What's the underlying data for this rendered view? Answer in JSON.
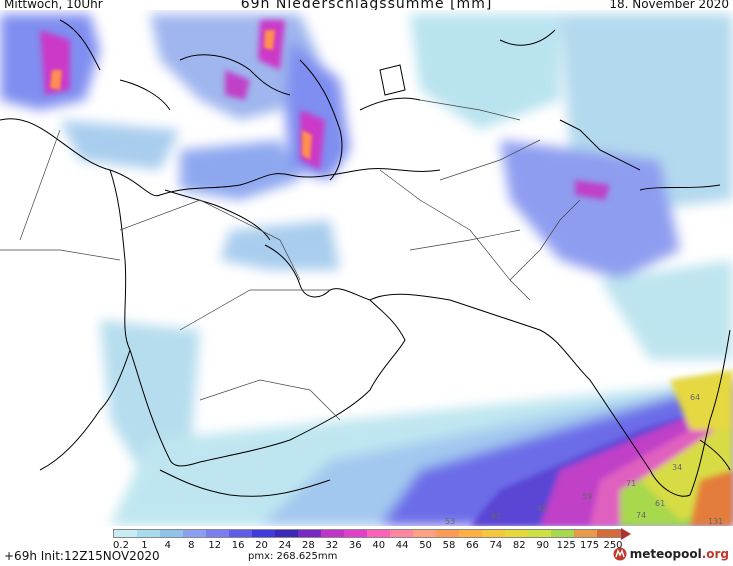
{
  "header": {
    "weekday_time": "Mittwoch, 10Uhr",
    "title": "69h Niederschlagssumme [mm]",
    "date": "18. November 2020"
  },
  "legend": {
    "labels": [
      "0.2",
      "1",
      "4",
      "8",
      "12",
      "16",
      "20",
      "24",
      "28",
      "32",
      "36",
      "40",
      "44",
      "50",
      "58",
      "66",
      "74",
      "82",
      "90",
      "125",
      "175",
      "250"
    ],
    "colors": [
      "#c8ecf3",
      "#a7dcec",
      "#8ec3ea",
      "#8a9ff0",
      "#7a7ef0",
      "#5f5ce8",
      "#3f3cdc",
      "#3b2ab8",
      "#7a2ac4",
      "#c035c8",
      "#e040c8",
      "#ff60b8",
      "#ff85a0",
      "#ffa080",
      "#ff9a55",
      "#ffb040",
      "#f5c83c",
      "#e7d83a",
      "#cde03f",
      "#a8d84c",
      "#e89a4a",
      "#d86a3a"
    ]
  },
  "footer": {
    "init": "+69h Init:12Z15NOV2020",
    "pmx": "pmx: 268.625mm",
    "brand_main": "meteopool",
    "brand_suffix": ".org"
  },
  "map": {
    "values": [
      "64",
      "34",
      "71",
      "59",
      "42",
      "62",
      "74",
      "53",
      "131",
      "61"
    ]
  }
}
